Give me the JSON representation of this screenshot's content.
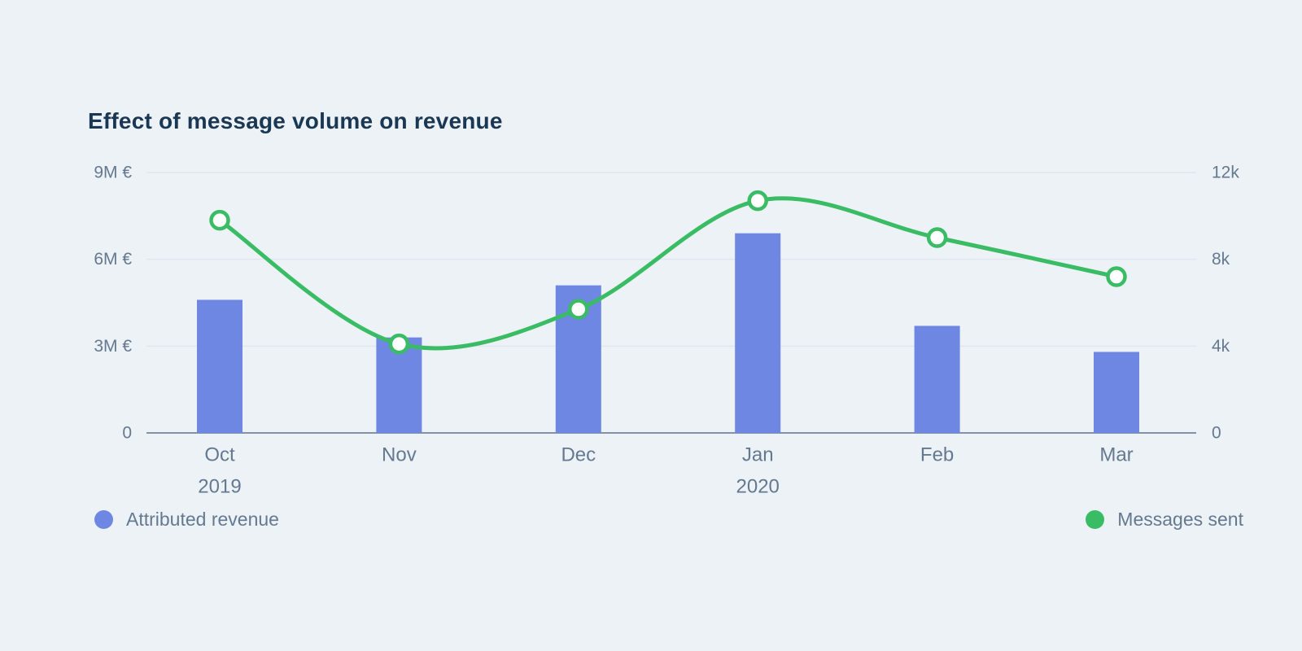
{
  "title": "Effect of message volume on revenue",
  "legend": {
    "revenue_label": "Attributed revenue",
    "messages_label": "Messages sent"
  },
  "colors": {
    "background": "#edf2f7",
    "bar": "#6d87e3",
    "line": "#3abc64",
    "marker_fill": "#ffffff",
    "grid": "#dfe6ee",
    "axis_line": "#8093a9",
    "title_text": "#1a3853",
    "label_text": "#64798f"
  },
  "chart_data": {
    "type": "bar",
    "subtype": "bar-line-combo",
    "title": "Effect of message volume on revenue",
    "categories": [
      "Oct",
      "Nov",
      "Dec",
      "Jan",
      "Feb",
      "Mar"
    ],
    "x_year_annotations": [
      {
        "category_index": 0,
        "label": "2019"
      },
      {
        "category_index": 3,
        "label": "2020"
      }
    ],
    "series": [
      {
        "name": "Attributed revenue",
        "kind": "bar",
        "y_axis": "left",
        "unit": "M €",
        "values": [
          4.6,
          3.3,
          5.1,
          6.9,
          3.7,
          2.8
        ]
      },
      {
        "name": "Messages sent",
        "kind": "line",
        "y_axis": "right",
        "unit": "k",
        "values": [
          9.8,
          4.1,
          5.7,
          10.7,
          9.0,
          7.2
        ]
      }
    ],
    "left_axis": {
      "range": [
        0,
        9
      ],
      "ticks": [
        {
          "value": 0,
          "label": "0"
        },
        {
          "value": 3,
          "label": "3M €"
        },
        {
          "value": 6,
          "label": "6M €"
        },
        {
          "value": 9,
          "label": "9M €"
        }
      ]
    },
    "right_axis": {
      "range": [
        0,
        12
      ],
      "ticks": [
        {
          "value": 0,
          "label": "0"
        },
        {
          "value": 4,
          "label": "4k"
        },
        {
          "value": 8,
          "label": "8k"
        },
        {
          "value": 12,
          "label": "12k"
        }
      ]
    },
    "grid": "horizontal",
    "legend_position": "bottom"
  }
}
